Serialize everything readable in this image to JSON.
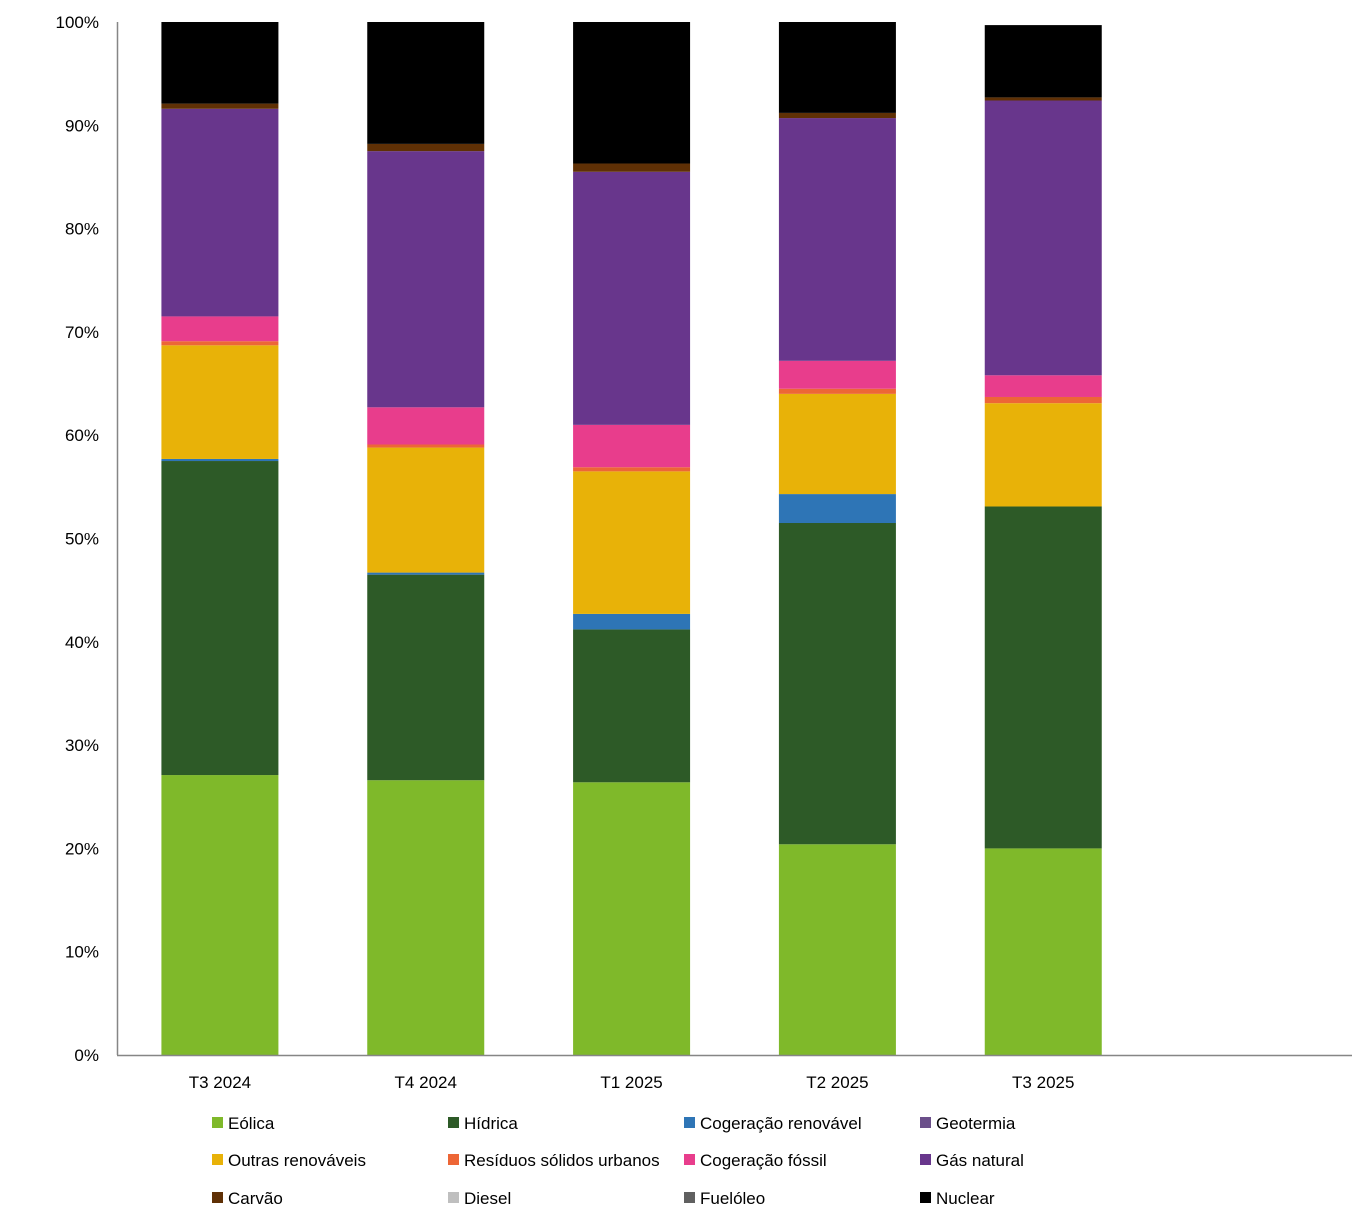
{
  "chart_data": {
    "type": "bar",
    "stacked": true,
    "percent": true,
    "title": "",
    "xlabel": "",
    "ylabel": "",
    "ylim": [
      0,
      100
    ],
    "yticks": [
      "0%",
      "10%",
      "20%",
      "30%",
      "40%",
      "50%",
      "60%",
      "70%",
      "80%",
      "90%",
      "100%"
    ],
    "grid": false,
    "legend_placement": "bottom",
    "categories": [
      "T3 2024",
      "T4 2024",
      "T1 2025",
      "T2 2025",
      "T3 2025"
    ],
    "series": [
      {
        "name": "Eólica",
        "color": "#7fb92a",
        "values": [
          27.1,
          26.6,
          26.4,
          20.4,
          20.0
        ]
      },
      {
        "name": "Hídrica",
        "color": "#2d5a27",
        "values": [
          30.4,
          19.9,
          14.8,
          31.1,
          33.1
        ]
      },
      {
        "name": "Cogeração renovável",
        "color": "#2e75b6",
        "values": [
          0.2,
          0.2,
          1.5,
          2.8,
          0.0
        ]
      },
      {
        "name": "Geotermia",
        "color": "#6b4f8a",
        "values": [
          0,
          0,
          0,
          0,
          0
        ]
      },
      {
        "name": "Outras renováveis",
        "color": "#e8b208",
        "values": [
          11.0,
          12.1,
          13.8,
          9.7,
          10.0
        ]
      },
      {
        "name": "Resíduos sólidos urbanos",
        "color": "#ed6636",
        "values": [
          0.4,
          0.3,
          0.4,
          0.5,
          0.6
        ]
      },
      {
        "name": "Cogeração fóssil",
        "color": "#e83d8c",
        "values": [
          2.4,
          3.6,
          4.1,
          2.7,
          2.1
        ]
      },
      {
        "name": "Gás natural",
        "color": "#68368c",
        "values": [
          20.1,
          24.8,
          24.5,
          23.5,
          26.6
        ]
      },
      {
        "name": "Carvão",
        "color": "#5f3005",
        "values": [
          0.5,
          0.7,
          0.8,
          0.5,
          0.3
        ]
      },
      {
        "name": "Diesel",
        "color": "#bfbfbf",
        "values": [
          0,
          0,
          0,
          0,
          0
        ]
      },
      {
        "name": "Fuelóleo",
        "color": "#606060",
        "values": [
          0,
          0,
          0,
          0,
          0
        ]
      },
      {
        "name": "Nuclear",
        "color": "#000000",
        "values": [
          7.9,
          11.8,
          13.7,
          8.8,
          7.0
        ]
      }
    ]
  }
}
